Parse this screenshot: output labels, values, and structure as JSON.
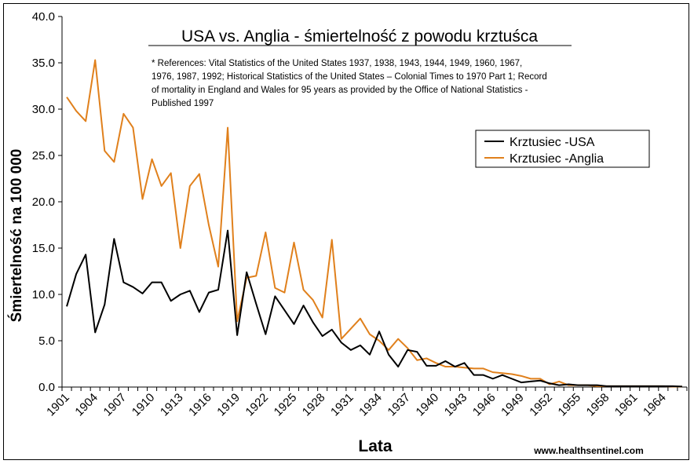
{
  "chart_data": {
    "type": "line",
    "title": "USA vs. Anglia - śmiertelność z powodu krztuśca",
    "note_lines": [
      "* References: Vital Statistics of the United States 1937, 1938, 1943, 1944, 1949, 1960, 1967,",
      "1976, 1987, 1992; Historical Statistics of the United States – Colonial Times to 1970 Part 1; Record",
      "of mortality in England and Wales for 95 years as provided by the Office of National Statistics -",
      "Published 1997"
    ],
    "xlabel": "Lata",
    "ylabel": "Śmiertelność na 100 000",
    "credit": "www.healthsentinel.com",
    "ylim": [
      0,
      40
    ],
    "yticks": [
      "0.0",
      "5.0",
      "10.0",
      "15.0",
      "20.0",
      "25.0",
      "30.0",
      "35.0",
      "40.0"
    ],
    "xticks": [
      "1901",
      "1904",
      "1907",
      "1910",
      "1913",
      "1916",
      "1919",
      "1922",
      "1925",
      "1928",
      "1931",
      "1934",
      "1937",
      "1940",
      "1943",
      "1946",
      "1949",
      "1952",
      "1955",
      "1958",
      "1961",
      "1964"
    ],
    "x": [
      1901,
      1902,
      1903,
      1904,
      1905,
      1906,
      1907,
      1908,
      1909,
      1910,
      1911,
      1912,
      1913,
      1914,
      1915,
      1916,
      1917,
      1918,
      1919,
      1920,
      1921,
      1922,
      1923,
      1924,
      1925,
      1926,
      1927,
      1928,
      1929,
      1930,
      1931,
      1932,
      1933,
      1934,
      1935,
      1936,
      1937,
      1938,
      1939,
      1940,
      1941,
      1942,
      1943,
      1944,
      1945,
      1946,
      1947,
      1948,
      1949,
      1950,
      1951,
      1952,
      1953,
      1954,
      1955,
      1956,
      1957,
      1958,
      1959,
      1960,
      1961,
      1962,
      1963,
      1964,
      1965,
      1966
    ],
    "legend_position": "right",
    "series": [
      {
        "name": "Krztusiec -USA",
        "color": "#000000",
        "values": [
          8.7,
          12.2,
          14.3,
          5.9,
          8.9,
          16.0,
          11.3,
          10.8,
          10.1,
          11.3,
          11.3,
          9.3,
          10.0,
          10.4,
          8.1,
          10.2,
          10.5,
          16.9,
          5.6,
          12.4,
          9.0,
          5.7,
          9.8,
          8.3,
          6.8,
          8.8,
          7.0,
          5.5,
          6.2,
          4.8,
          4.0,
          4.5,
          3.5,
          6.0,
          3.5,
          2.2,
          4.0,
          3.8,
          2.3,
          2.3,
          2.8,
          2.2,
          2.6,
          1.3,
          1.3,
          0.9,
          1.3,
          0.9,
          0.5,
          0.6,
          0.7,
          0.4,
          0.2,
          0.3,
          0.2,
          0.2,
          0.2,
          0.1,
          0.1,
          0.1,
          0.1,
          0.1,
          0.1,
          0.1,
          0.1,
          0.05
        ]
      },
      {
        "name": "Krztusiec -Anglia",
        "color": "#e0801c",
        "values": [
          31.3,
          29.8,
          28.7,
          35.3,
          25.5,
          24.3,
          29.5,
          28.0,
          20.3,
          24.6,
          21.7,
          23.1,
          15.0,
          21.7,
          23.0,
          17.5,
          13.0,
          28.0,
          7.1,
          11.8,
          12.0,
          16.7,
          10.7,
          10.2,
          15.6,
          10.5,
          9.4,
          7.5,
          15.9,
          5.2,
          6.3,
          7.4,
          5.7,
          5.0,
          4.0,
          5.2,
          4.2,
          2.9,
          3.1,
          2.6,
          2.2,
          2.2,
          2.1,
          2.0,
          2.0,
          1.6,
          1.5,
          1.4,
          1.2,
          0.9,
          0.9,
          0.3,
          0.6,
          0.2,
          0.2,
          0.2,
          0.1,
          0.1,
          0.1,
          0.1,
          0.1,
          0.1,
          0.1,
          0.1,
          0.05,
          0.05
        ]
      }
    ]
  }
}
